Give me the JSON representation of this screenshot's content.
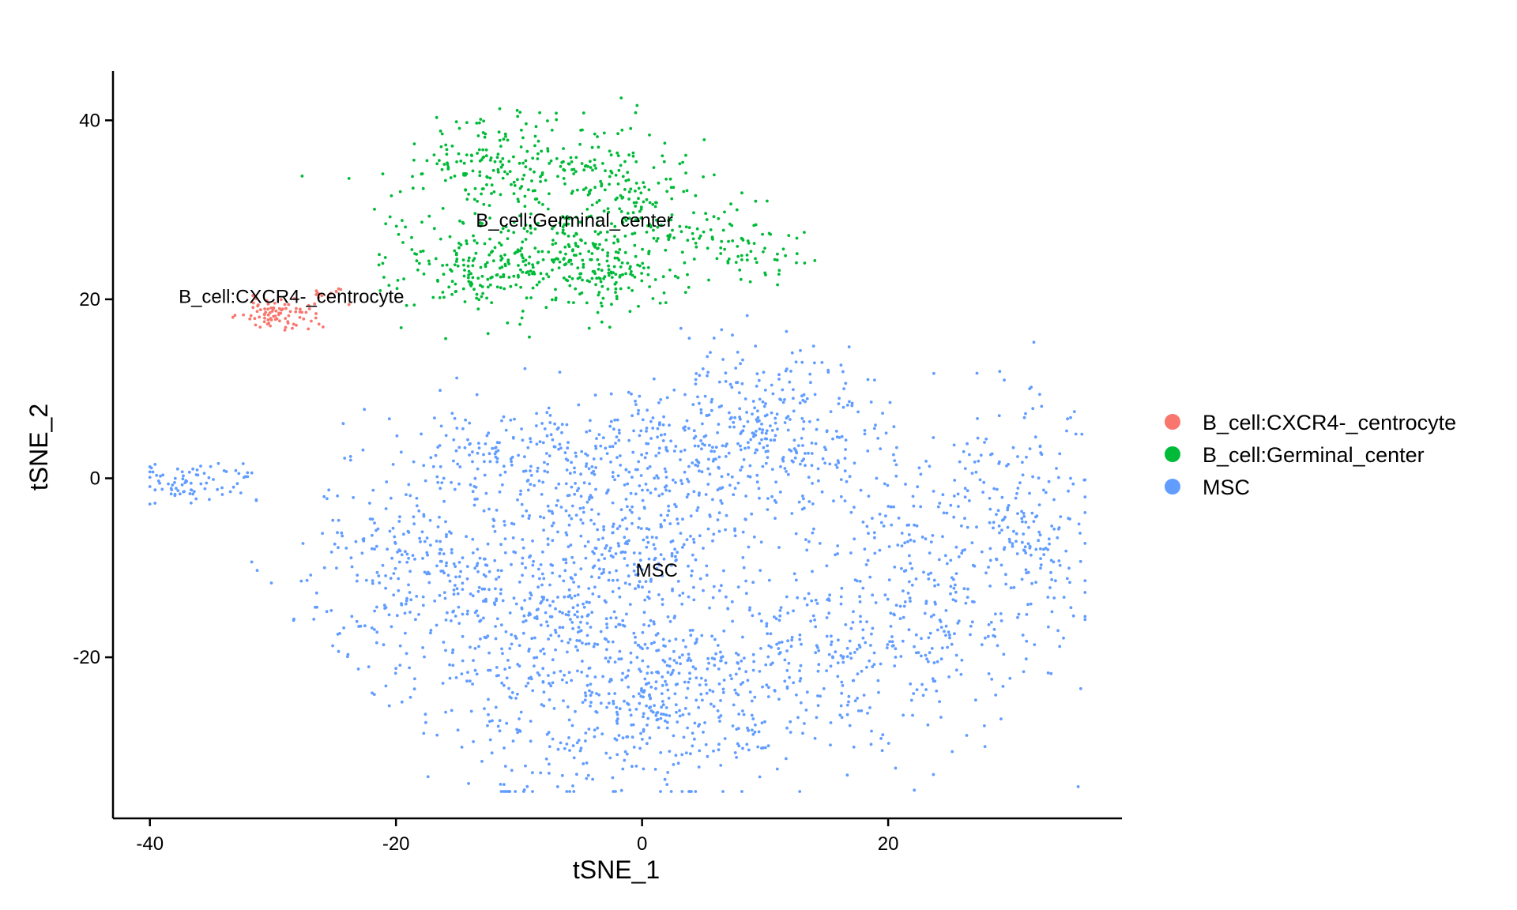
{
  "chart_data": {
    "type": "scatter",
    "title": "",
    "xlabel": "tSNE_1",
    "ylabel": "tSNE_2",
    "xlim": [
      -43,
      39
    ],
    "ylim": [
      -38,
      45.5
    ],
    "x_ticks": [
      -40,
      -20,
      0,
      20
    ],
    "y_ticks": [
      -20,
      0,
      20,
      40
    ],
    "x_tick_labels": [
      "-40",
      "-20",
      "0",
      "20"
    ],
    "y_tick_labels": [
      "-20",
      "0",
      "20",
      "40"
    ],
    "grid": false,
    "legend_position": "right",
    "series": [
      {
        "name": "B_cell:CXCR4-_centrocyte",
        "color": "#F8766D",
        "label": "B_cell:CXCR4-_centrocyte",
        "label_pos": [
          -28.5,
          20.3
        ],
        "clusters": [
          {
            "center": [
              -29.5,
              18.3
            ],
            "spread": [
              1.6,
              0.9
            ],
            "n": 85
          },
          {
            "center": [
              -25.5,
              20.9
            ],
            "spread": [
              0.9,
              0.5
            ],
            "n": 12
          }
        ]
      },
      {
        "name": "B_cell:Germinal_center",
        "color": "#00BA38",
        "label": "B_cell:Germinal_center",
        "label_pos": [
          -5.5,
          28.8
        ],
        "clusters": [
          {
            "center": [
              -10,
              35
            ],
            "spread": [
              4.5,
              3.0
            ],
            "n": 230
          },
          {
            "center": [
              -12,
              24
            ],
            "spread": [
              4.0,
              3.0
            ],
            "n": 260
          },
          {
            "center": [
              -3,
              24
            ],
            "spread": [
              3.0,
              3.0
            ],
            "n": 170
          },
          {
            "center": [
              -1,
              32
            ],
            "spread": [
              3.0,
              3.5
            ],
            "n": 120
          },
          {
            "center": [
              6,
              27
            ],
            "spread": [
              3.0,
              2.0
            ],
            "n": 70
          },
          {
            "center": [
              9,
              24
            ],
            "spread": [
              1.5,
              1.2
            ],
            "n": 30
          }
        ]
      },
      {
        "name": "MSC",
        "color": "#619CFF",
        "label": "MSC",
        "label_pos": [
          1.2,
          -10.3
        ],
        "clusters": [
          {
            "center": [
              -36,
              -0.5
            ],
            "spread": [
              2.5,
              1.2
            ],
            "n": 80
          },
          {
            "center": [
              -19,
              -10
            ],
            "spread": [
              4.5,
              6.0
            ],
            "n": 230
          },
          {
            "center": [
              -8,
              -17
            ],
            "spread": [
              6.0,
              9.0
            ],
            "n": 520
          },
          {
            "center": [
              2,
              -25
            ],
            "spread": [
              5.0,
              5.0
            ],
            "n": 320
          },
          {
            "center": [
              0,
              -5
            ],
            "spread": [
              5.0,
              7.0
            ],
            "n": 350
          },
          {
            "center": [
              10,
              5
            ],
            "spread": [
              4.5,
              5.0
            ],
            "n": 330
          },
          {
            "center": [
              -8,
              3
            ],
            "spread": [
              7.0,
              3.0
            ],
            "n": 200
          },
          {
            "center": [
              22,
              -12
            ],
            "spread": [
              5.0,
              8.0
            ],
            "n": 320
          },
          {
            "center": [
              31,
              -5
            ],
            "spread": [
              3.0,
              8.0
            ],
            "n": 200
          },
          {
            "center": [
              13,
              -20
            ],
            "spread": [
              5.0,
              5.0
            ],
            "n": 180
          }
        ]
      }
    ]
  }
}
